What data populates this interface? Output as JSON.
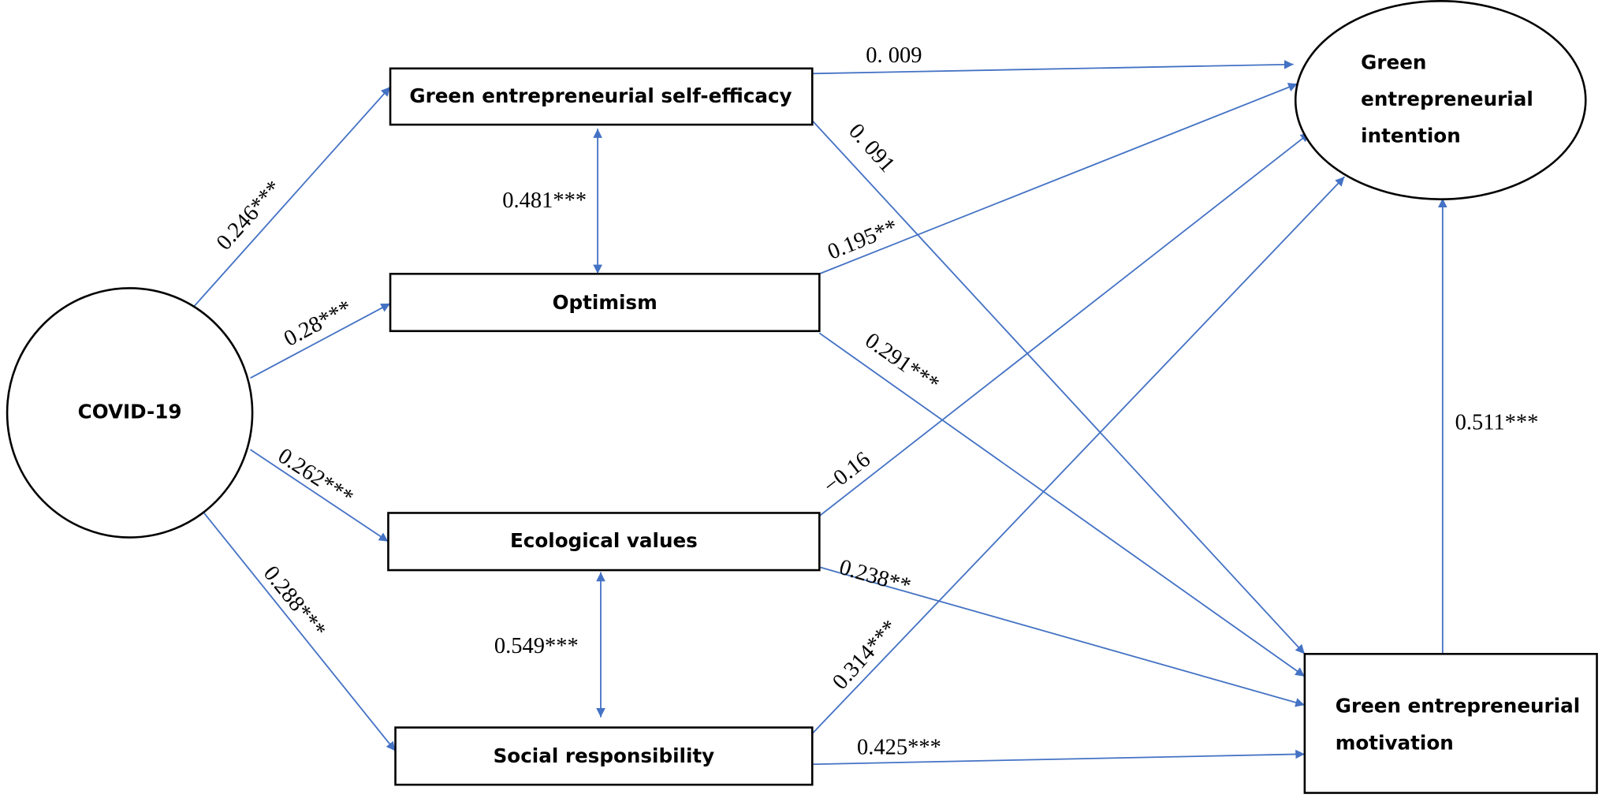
{
  "nodes": [
    {
      "label": "COVID-19"
    },
    {
      "label": "Green entrepreneurial self-efficacy"
    },
    {
      "label": "Optimism"
    },
    {
      "label": "Ecological values"
    },
    {
      "label": "Social responsibility"
    },
    {
      "lines": [
        "Green",
        "entrepreneurial",
        "intention"
      ]
    },
    {
      "lines": [
        "Green entrepreneurial",
        "motivation"
      ]
    }
  ],
  "edges": [
    {
      "label": "0.246***"
    },
    {
      "label": "0.28***"
    },
    {
      "label": "0.262***"
    },
    {
      "label": "0.288***"
    },
    {
      "label": "0.481***"
    },
    {
      "label": "0.549***"
    },
    {
      "label": "0. 009"
    },
    {
      "label": "0. 091"
    },
    {
      "label": "0.195**"
    },
    {
      "label": "0.291***"
    },
    {
      "label": "−0.16"
    },
    {
      "label": "0.238**"
    },
    {
      "label": "0.314***"
    },
    {
      "label": "0.425***"
    },
    {
      "label": "0.511***"
    }
  ]
}
